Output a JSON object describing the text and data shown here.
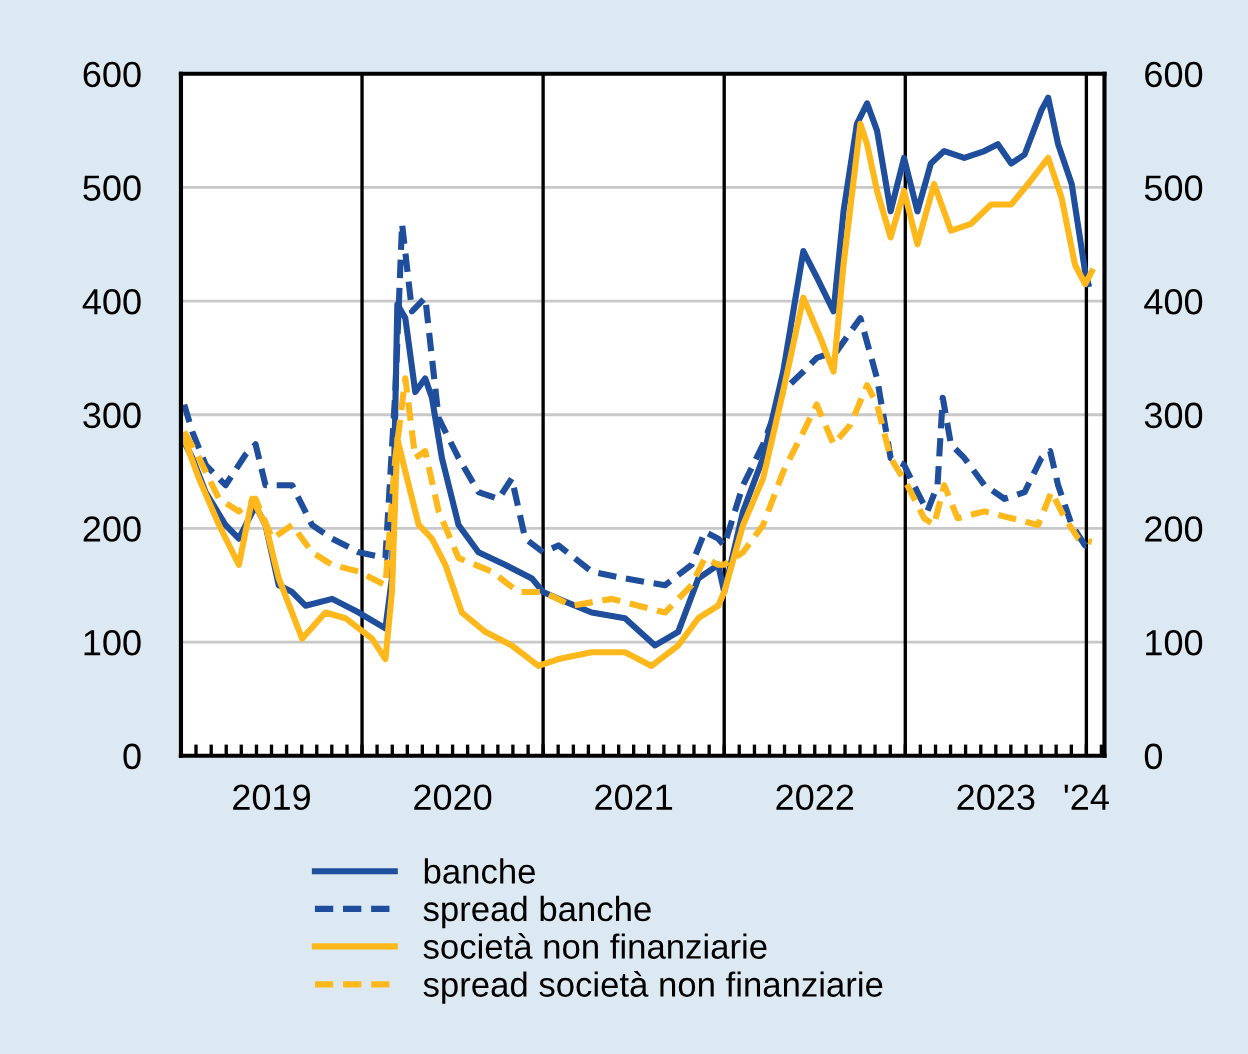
{
  "chart_data": {
    "type": "line",
    "xlim": [
      2019.0,
      2024.1
    ],
    "ylim": [
      0,
      600
    ],
    "yticks": [
      0,
      100,
      200,
      300,
      400,
      500,
      600
    ],
    "y2lim": [
      0,
      600
    ],
    "y2ticks": [
      0,
      100,
      200,
      300,
      400,
      500,
      600
    ],
    "xticks": [
      {
        "value": 2019.0,
        "label": null
      },
      {
        "value": 2019.083,
        "label": null
      },
      {
        "value": 2019.167,
        "label": null
      },
      {
        "value": 2019.25,
        "label": null
      },
      {
        "value": 2019.333,
        "label": null
      },
      {
        "value": 2019.417,
        "label": null
      },
      {
        "value": 2019.5,
        "label": "2019"
      },
      {
        "value": 2019.583,
        "label": null
      },
      {
        "value": 2019.667,
        "label": null
      },
      {
        "value": 2019.75,
        "label": null
      },
      {
        "value": 2019.833,
        "label": null
      },
      {
        "value": 2019.917,
        "label": null
      },
      {
        "value": 2020.0,
        "label": null
      },
      {
        "value": 2020.083,
        "label": null
      },
      {
        "value": 2020.167,
        "label": null
      },
      {
        "value": 2020.25,
        "label": null
      },
      {
        "value": 2020.333,
        "label": null
      },
      {
        "value": 2020.417,
        "label": null
      },
      {
        "value": 2020.5,
        "label": "2020"
      },
      {
        "value": 2020.583,
        "label": null
      },
      {
        "value": 2020.667,
        "label": null
      },
      {
        "value": 2020.75,
        "label": null
      },
      {
        "value": 2020.833,
        "label": null
      },
      {
        "value": 2020.917,
        "label": null
      },
      {
        "value": 2021.0,
        "label": null
      },
      {
        "value": 2021.083,
        "label": null
      },
      {
        "value": 2021.167,
        "label": null
      },
      {
        "value": 2021.25,
        "label": null
      },
      {
        "value": 2021.333,
        "label": null
      },
      {
        "value": 2021.417,
        "label": null
      },
      {
        "value": 2021.5,
        "label": "2021"
      },
      {
        "value": 2021.583,
        "label": null
      },
      {
        "value": 2021.667,
        "label": null
      },
      {
        "value": 2021.75,
        "label": null
      },
      {
        "value": 2021.833,
        "label": null
      },
      {
        "value": 2021.917,
        "label": null
      },
      {
        "value": 2022.0,
        "label": null
      },
      {
        "value": 2022.083,
        "label": null
      },
      {
        "value": 2022.167,
        "label": null
      },
      {
        "value": 2022.25,
        "label": null
      },
      {
        "value": 2022.333,
        "label": null
      },
      {
        "value": 2022.417,
        "label": null
      },
      {
        "value": 2022.5,
        "label": "2022"
      },
      {
        "value": 2022.583,
        "label": null
      },
      {
        "value": 2022.667,
        "label": null
      },
      {
        "value": 2022.75,
        "label": null
      },
      {
        "value": 2022.833,
        "label": null
      },
      {
        "value": 2022.917,
        "label": null
      },
      {
        "value": 2023.0,
        "label": null
      },
      {
        "value": 2023.083,
        "label": null
      },
      {
        "value": 2023.167,
        "label": null
      },
      {
        "value": 2023.25,
        "label": null
      },
      {
        "value": 2023.333,
        "label": null
      },
      {
        "value": 2023.417,
        "label": null
      },
      {
        "value": 2023.5,
        "label": "2023"
      },
      {
        "value": 2023.583,
        "label": null
      },
      {
        "value": 2023.667,
        "label": null
      },
      {
        "value": 2023.75,
        "label": null
      },
      {
        "value": 2023.833,
        "label": null
      },
      {
        "value": 2023.917,
        "label": null
      },
      {
        "value": 2024.0,
        "label": "'24"
      },
      {
        "value": 2024.083,
        "label": null
      }
    ],
    "grid": "y",
    "legend": "bottom",
    "ref_lines": [
      {
        "axis": "x",
        "value": 2020.0,
        "label": null,
        "color": "#000000"
      },
      {
        "axis": "x",
        "value": 2021.0,
        "label": null,
        "color": "#000000"
      },
      {
        "axis": "x",
        "value": 2022.0,
        "label": null,
        "color": "#000000"
      },
      {
        "axis": "x",
        "value": 2023.0,
        "label": null,
        "color": "#000000"
      },
      {
        "axis": "x",
        "value": 2024.0,
        "label": null,
        "color": "#000000"
      }
    ],
    "series": [
      {
        "name": "banche",
        "color": "#1f4e9c",
        "line_style": "solid",
        "x": [
          2019.018,
          2019.063,
          2019.136,
          2019.246,
          2019.32,
          2019.412,
          2019.467,
          2019.54,
          2019.614,
          2019.688,
          2019.835,
          2019.982,
          2020.129,
          2020.165,
          2020.195,
          2020.239,
          2020.294,
          2020.349,
          2020.386,
          2020.441,
          2020.533,
          2020.643,
          2020.79,
          2020.938,
          2021.0,
          2021.085,
          2021.268,
          2021.452,
          2021.618,
          2021.746,
          2021.857,
          2021.967,
          2022.0,
          2022.104,
          2022.215,
          2022.326,
          2022.437,
          2022.511,
          2022.604,
          2022.659,
          2022.733,
          2022.789,
          2022.844,
          2022.919,
          2022.993,
          2023.067,
          2023.141,
          2023.215,
          2023.326,
          2023.437,
          2023.511,
          2023.585,
          2023.659,
          2023.752,
          2023.789,
          2023.844,
          2023.919,
          2023.993,
          2024.011
        ],
        "values": [
          276,
          262,
          232,
          203,
          191,
          220,
          203,
          150,
          144,
          132,
          138,
          126,
          112,
          156,
          397,
          385,
          320,
          332,
          315,
          262,
          203,
          179,
          168,
          156,
          144,
          138,
          126,
          121,
          97,
          109,
          156,
          168,
          144,
          215,
          262,
          338,
          444,
          421,
          391,
          479,
          556,
          574,
          550,
          479,
          526,
          479,
          521,
          532,
          526,
          532,
          538,
          521,
          529,
          568,
          579,
          538,
          503,
          426,
          415
        ]
      },
      {
        "name": "spread banche",
        "color": "#1f4e9c",
        "line_style": "dashed",
        "x": [
          2019.018,
          2019.063,
          2019.136,
          2019.246,
          2019.357,
          2019.412,
          2019.467,
          2019.614,
          2019.724,
          2019.835,
          2019.982,
          2020.129,
          2020.184,
          2020.221,
          2020.276,
          2020.349,
          2020.423,
          2020.533,
          2020.643,
          2020.754,
          2020.827,
          2020.901,
          2021.0,
          2021.085,
          2021.268,
          2021.452,
          2021.673,
          2021.82,
          2021.893,
          2021.967,
          2022.0,
          2022.104,
          2022.215,
          2022.326,
          2022.437,
          2022.511,
          2022.622,
          2022.752,
          2022.844,
          2022.919,
          2022.993,
          2023.067,
          2023.122,
          2023.178,
          2023.207,
          2023.252,
          2023.326,
          2023.437,
          2023.548,
          2023.659,
          2023.752,
          2023.8,
          2023.844,
          2023.919,
          2023.993,
          2024.03
        ],
        "values": [
          309,
          285,
          256,
          238,
          265,
          274,
          238,
          238,
          203,
          191,
          179,
          174,
          321,
          468,
          391,
          403,
          297,
          262,
          232,
          226,
          244,
          191,
          179,
          185,
          162,
          156,
          150,
          168,
          197,
          191,
          185,
          238,
          274,
          321,
          338,
          350,
          356,
          385,
          332,
          262,
          256,
          232,
          215,
          238,
          315,
          274,
          262,
          238,
          226,
          232,
          262,
          268,
          238,
          203,
          185,
          188
        ]
      },
      {
        "name": "società non finanziarie",
        "color": "#ffb81c",
        "line_style": "solid",
        "x": [
          2019.018,
          2019.099,
          2019.21,
          2019.32,
          2019.393,
          2019.467,
          2019.54,
          2019.669,
          2019.798,
          2019.908,
          2020.055,
          2020.129,
          2020.165,
          2020.195,
          2020.239,
          2020.313,
          2020.386,
          2020.46,
          2020.551,
          2020.68,
          2020.827,
          2020.974,
          2021.085,
          2021.268,
          2021.452,
          2021.599,
          2021.746,
          2021.857,
          2021.967,
          2022.0,
          2022.104,
          2022.215,
          2022.326,
          2022.437,
          2022.53,
          2022.604,
          2022.659,
          2022.752,
          2022.789,
          2022.844,
          2022.919,
          2022.993,
          2023.067,
          2023.159,
          2023.252,
          2023.363,
          2023.474,
          2023.585,
          2023.678,
          2023.789,
          2023.863,
          2023.937,
          2023.993,
          2024.03
        ],
        "values": [
          279,
          244,
          203,
          168,
          226,
          203,
          156,
          103,
          126,
          121,
          103,
          85,
          144,
          279,
          250,
          203,
          191,
          168,
          126,
          109,
          97,
          79,
          85,
          91,
          91,
          79,
          97,
          121,
          132,
          144,
          203,
          244,
          321,
          403,
          368,
          338,
          432,
          556,
          538,
          497,
          456,
          497,
          450,
          503,
          462,
          468,
          485,
          485,
          503,
          526,
          491,
          432,
          415,
          426
        ]
      },
      {
        "name": "spread società non finanziarie",
        "color": "#ffb81c",
        "line_style": "dashed",
        "x": [
          2019.018,
          2019.099,
          2019.21,
          2019.32,
          2019.412,
          2019.504,
          2019.614,
          2019.724,
          2019.835,
          2019.982,
          2020.129,
          2020.184,
          2020.239,
          2020.294,
          2020.349,
          2020.423,
          2020.533,
          2020.717,
          2020.864,
          2021.0,
          2021.158,
          2021.379,
          2021.526,
          2021.673,
          2021.82,
          2021.893,
          2021.967,
          2022.0,
          2022.104,
          2022.215,
          2022.326,
          2022.437,
          2022.511,
          2022.604,
          2022.696,
          2022.789,
          2022.844,
          2022.919,
          2023.011,
          2023.104,
          2023.159,
          2023.215,
          2023.289,
          2023.437,
          2023.585,
          2023.733,
          2023.807,
          2023.881,
          2023.956,
          2024.03
        ],
        "values": [
          285,
          262,
          226,
          215,
          226,
          191,
          203,
          179,
          168,
          162,
          150,
          262,
          332,
          262,
          268,
          215,
          174,
          162,
          144,
          144,
          132,
          138,
          132,
          126,
          150,
          174,
          168,
          168,
          179,
          203,
          250,
          285,
          309,
          274,
          291,
          326,
          309,
          262,
          238,
          209,
          203,
          238,
          209,
          215,
          209,
          203,
          232,
          209,
          191,
          188
        ]
      }
    ]
  }
}
